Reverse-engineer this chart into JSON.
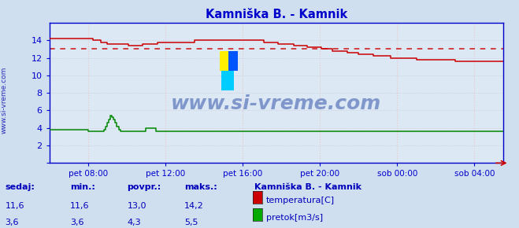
{
  "title": "Kamniška B. - Kamnik",
  "title_color": "#0000cc",
  "bg_color": "#d0dff0",
  "plot_bg_color": "#dde8f5",
  "grid_color_v": "#e8c8c8",
  "grid_color_h": "#c8c8d8",
  "axis_color": "#0000cc",
  "watermark_text": "www.si-vreme.com",
  "watermark_color": "#3355aa",
  "ylim": [
    0,
    16.0
  ],
  "yticks": [
    0,
    2,
    4,
    6,
    8,
    10,
    12,
    14
  ],
  "ytick_labels": [
    "",
    "2",
    "4",
    "6",
    "8",
    "10",
    "12",
    "14"
  ],
  "xtick_labels": [
    "pet 08:00",
    "pet 12:00",
    "pet 16:00",
    "pet 20:00",
    "sob 00:00",
    "sob 04:00"
  ],
  "avg_temp": 13.0,
  "legend_title": "Kamniška B. - Kamnik",
  "legend_items": [
    {
      "label": "temperatura[C]",
      "color": "#cc0000"
    },
    {
      "label": "pretok[m3/s]",
      "color": "#00aa00"
    }
  ],
  "table_headers": [
    "sedaj:",
    "min.:",
    "povpr.:",
    "maks.:"
  ],
  "table_rows": [
    [
      "11,6",
      "11,6",
      "13,0",
      "14,2"
    ],
    [
      "3,6",
      "3,6",
      "4,3",
      "5,5"
    ]
  ],
  "temp_color": "#cc0000",
  "flow_color": "#008800",
  "avg_line_color": "#cc0000",
  "border_color": "#0000cc",
  "left_label_color": "#0000aa",
  "arrow_color": "#cc0000"
}
